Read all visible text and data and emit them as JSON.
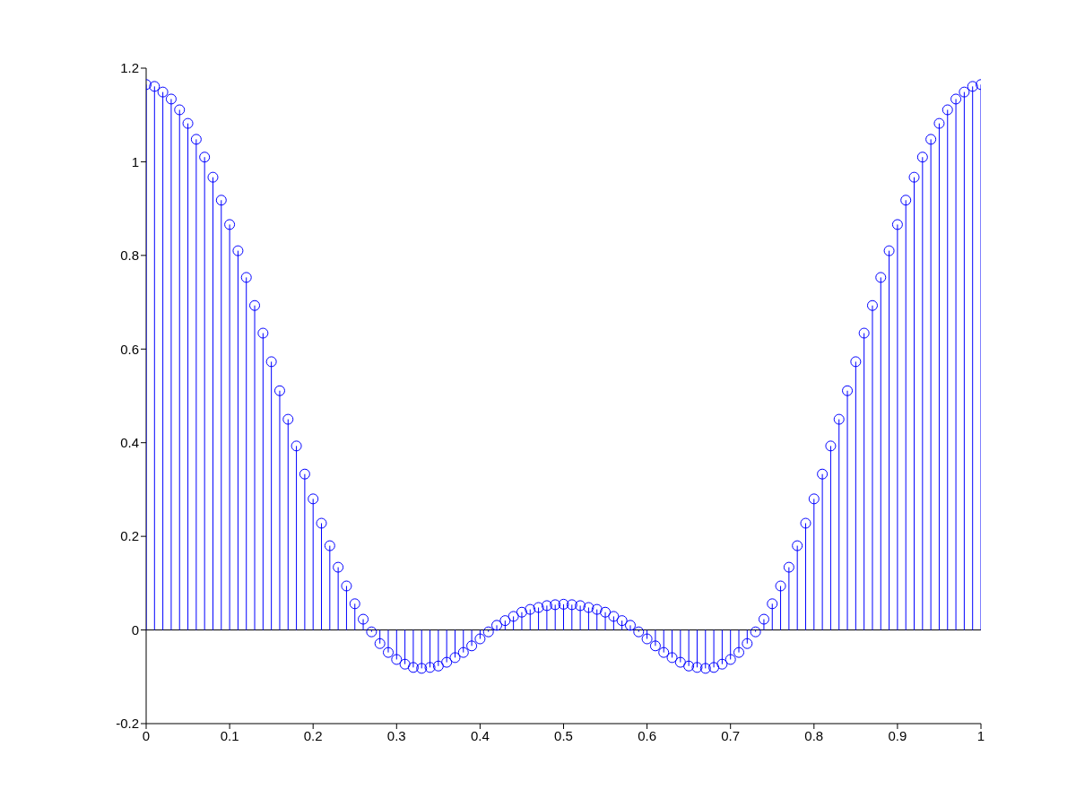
{
  "chart_data": {
    "type": "lollipop",
    "marker": "circle",
    "x": [
      0,
      0.01,
      0.02,
      0.03,
      0.04,
      0.05,
      0.06,
      0.07,
      0.08,
      0.09,
      0.1,
      0.11,
      0.12,
      0.13,
      0.14,
      0.15,
      0.16,
      0.17,
      0.18,
      0.19,
      0.2,
      0.21,
      0.22,
      0.23,
      0.24,
      0.25,
      0.26,
      0.27,
      0.28,
      0.29,
      0.3,
      0.31,
      0.32,
      0.33,
      0.34,
      0.35,
      0.36,
      0.37,
      0.38,
      0.39,
      0.4,
      0.41,
      0.42,
      0.43,
      0.44,
      0.45,
      0.46,
      0.47,
      0.48,
      0.49,
      0.5,
      0.51,
      0.52,
      0.53,
      0.54,
      0.55,
      0.56,
      0.57,
      0.58,
      0.59,
      0.6,
      0.61,
      0.62,
      0.63,
      0.64,
      0.65,
      0.66,
      0.67,
      0.68,
      0.69,
      0.7,
      0.71,
      0.72,
      0.73,
      0.74,
      0.75,
      0.76,
      0.77,
      0.78,
      0.79,
      0.8,
      0.81,
      0.82,
      0.83,
      0.84,
      0.85,
      0.86,
      0.87,
      0.88,
      0.89,
      0.9,
      0.91,
      0.92,
      0.93,
      0.94,
      0.95,
      0.96,
      0.97,
      0.98,
      0.99,
      1
    ],
    "series": [
      {
        "color": "#0000ff",
        "values": [
          1.165,
          1.161,
          1.149,
          1.134,
          1.111,
          1.082,
          1.048,
          1.01,
          0.967,
          0.918,
          0.866,
          0.81,
          0.753,
          0.693,
          0.634,
          0.573,
          0.511,
          0.45,
          0.393,
          0.333,
          0.28,
          0.228,
          0.18,
          0.134,
          0.094,
          0.056,
          0.023,
          -0.004,
          -0.029,
          -0.048,
          -0.063,
          -0.073,
          -0.08,
          -0.082,
          -0.08,
          -0.077,
          -0.069,
          -0.059,
          -0.048,
          -0.034,
          -0.019,
          -0.004,
          0.01,
          0.02,
          0.029,
          0.038,
          0.044,
          0.048,
          0.052,
          0.054,
          0.055,
          0.054,
          0.052,
          0.048,
          0.044,
          0.038,
          0.029,
          0.02,
          0.01,
          -0.004,
          -0.019,
          -0.034,
          -0.048,
          -0.059,
          -0.069,
          -0.077,
          -0.08,
          -0.082,
          -0.08,
          -0.073,
          -0.063,
          -0.048,
          -0.029,
          -0.004,
          0.023,
          0.056,
          0.094,
          0.134,
          0.18,
          0.228,
          0.28,
          0.333,
          0.393,
          0.45,
          0.511,
          0.573,
          0.634,
          0.693,
          0.753,
          0.81,
          0.866,
          0.918,
          0.967,
          1.01,
          1.048,
          1.082,
          1.111,
          1.134,
          1.149,
          1.161,
          1.165
        ]
      }
    ],
    "xlim": [
      0,
      1
    ],
    "xticks": [
      0,
      0.1,
      0.2,
      0.3,
      0.4,
      0.5,
      0.6,
      0.7,
      0.8,
      0.9,
      1
    ],
    "ylim": [
      -0.2,
      1.2
    ],
    "yticks": [
      -0.2,
      0,
      0.2,
      0.4,
      0.6,
      0.8,
      1,
      1.2
    ],
    "ref_lines": [
      {
        "axis": "y",
        "value": 0
      }
    ]
  }
}
